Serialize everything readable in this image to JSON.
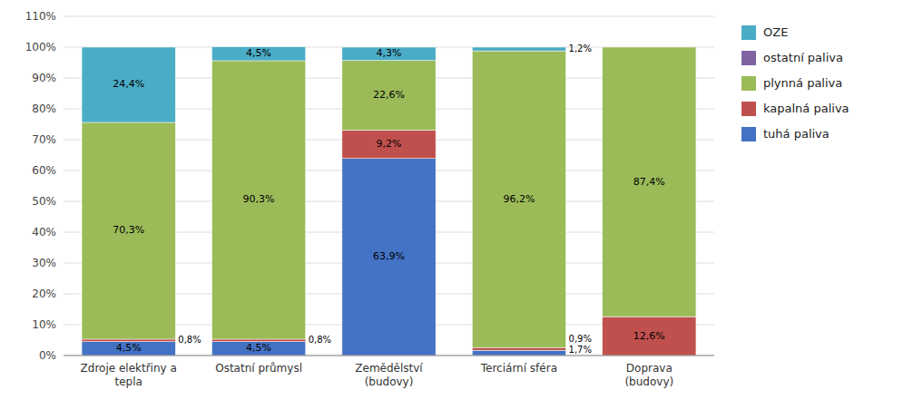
{
  "chart_data": {
    "type": "bar",
    "stacked": true,
    "categories": [
      "Zdroje elektřiny a\ntepla",
      "Ostatní průmysl",
      "Zemědělství\n(budovy)",
      "Terciární sféra",
      "Doprava\n(budovy)"
    ],
    "series": [
      {
        "name": "tuhá paliva",
        "color": "#4472C4",
        "values": [
          4.5,
          4.5,
          63.9,
          1.7,
          0.0
        ],
        "value_labels": [
          "4,5%",
          "4,5%",
          "63,9%",
          "1,7%",
          null
        ]
      },
      {
        "name": "kapalná paliva",
        "color": "#C0504D",
        "values": [
          0.8,
          0.8,
          9.2,
          0.9,
          12.6
        ],
        "value_labels": [
          "0,8%",
          "0,8%",
          "9,2%",
          "0,9%",
          "12,6%"
        ]
      },
      {
        "name": "plynná paliva",
        "color": "#9BBB59",
        "values": [
          70.3,
          90.3,
          22.6,
          96.2,
          87.4
        ],
        "value_labels": [
          "70,3%",
          "90,3%",
          "22,6%",
          "96,2%",
          "87,4%"
        ]
      },
      {
        "name": "ostatní paliva",
        "color": "#8064A2",
        "values": [
          0.0,
          0.0,
          0.0,
          0.0,
          0.0
        ],
        "value_labels": [
          null,
          null,
          null,
          null,
          null
        ]
      },
      {
        "name": "OZE",
        "color": "#4BACC6",
        "values": [
          24.4,
          4.5,
          4.3,
          1.2,
          0.0
        ],
        "value_labels": [
          "24,4%",
          "4,5%",
          "4,3%",
          "1,2%",
          null
        ]
      }
    ],
    "ylim": [
      0,
      110
    ],
    "yticks": [
      {
        "value": 0,
        "label": "0%"
      },
      {
        "value": 10,
        "label": "10%"
      },
      {
        "value": 20,
        "label": "20%"
      },
      {
        "value": 30,
        "label": "30%"
      },
      {
        "value": 40,
        "label": "40%"
      },
      {
        "value": 50,
        "label": "50%"
      },
      {
        "value": 60,
        "label": "60%"
      },
      {
        "value": 70,
        "label": "70%"
      },
      {
        "value": 80,
        "label": "80%"
      },
      {
        "value": 90,
        "label": "90%"
      },
      {
        "value": 100,
        "label": "100%"
      },
      {
        "value": 110,
        "label": "110%"
      }
    ],
    "grid": true,
    "legend": "right",
    "data_labels": true
  }
}
